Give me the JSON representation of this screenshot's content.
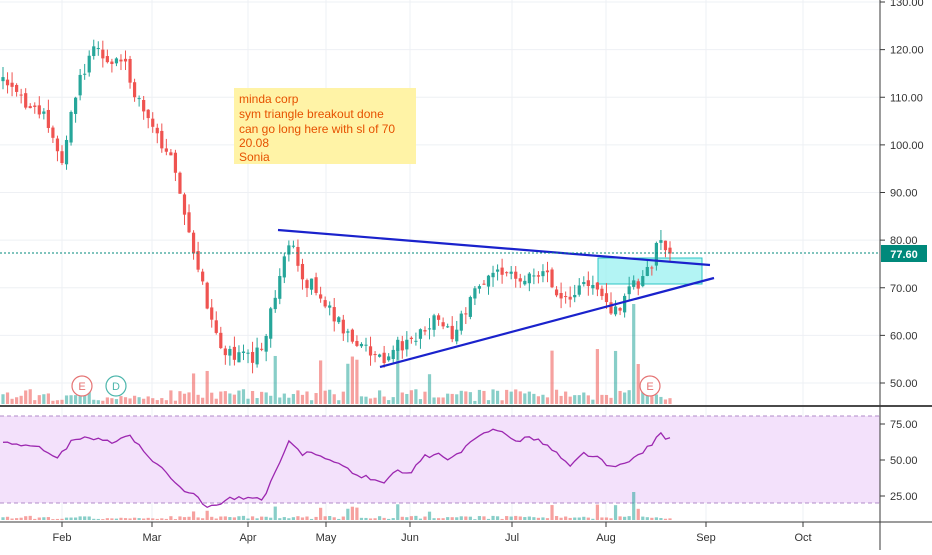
{
  "chart_data": {
    "type": "candlestick",
    "annotation": {
      "lines": [
        "minda corp",
        "sym triangle breakout done",
        "can go long here with sl of 70",
        "20.08",
        "Sonia"
      ],
      "background": "#fff3a6",
      "text_color": "#e65100"
    },
    "last_price_label": "77.60",
    "last_price": 77.6,
    "price_axis": {
      "ticks": [
        "130.00",
        "120.00",
        "110.00",
        "100.00",
        "90.00",
        "80.00",
        "70.00",
        "60.00",
        "50.00"
      ],
      "range": [
        45.5,
        131
      ]
    },
    "rsi_axis": {
      "ticks": [
        "75.00",
        "50.00",
        "25.00"
      ],
      "range": [
        10,
        80
      ],
      "upper_band": 80,
      "lower_band": 20
    },
    "time_axis": [
      "Feb",
      "Mar",
      "Apr",
      "May",
      "Jun",
      "Jul",
      "Aug",
      "Sep",
      "Oct"
    ],
    "event_markers": [
      "E",
      "D",
      "E"
    ],
    "trendlines": {
      "upper": [
        [
          0,
          82
        ],
        [
          1,
          75
        ]
      ],
      "lower": [
        [
          0,
          53.5
        ],
        [
          1,
          72.5
        ]
      ]
    },
    "colors": {
      "up": "#26a69a",
      "down": "#ef5350",
      "trendline": "#1a22cc",
      "rsi_line": "#9c27b0",
      "rsi_band_fill": "#f3e1fb",
      "price_line": "#00897b",
      "price_label_bg": "#00897b",
      "breakout_box": "#99f0f0"
    },
    "price_anchors": [
      [
        0,
        113
      ],
      [
        0.06,
        106
      ],
      [
        0.09,
        96
      ],
      [
        0.11,
        112
      ],
      [
        0.14,
        121
      ],
      [
        0.16,
        116
      ],
      [
        0.18,
        118
      ],
      [
        0.2,
        110
      ],
      [
        0.22,
        104
      ],
      [
        0.25,
        97
      ],
      [
        0.27,
        88
      ],
      [
        0.29,
        76
      ],
      [
        0.31,
        64
      ],
      [
        0.33,
        57
      ],
      [
        0.35,
        56
      ],
      [
        0.37,
        55
      ],
      [
        0.39,
        57
      ],
      [
        0.41,
        70
      ],
      [
        0.43,
        80
      ],
      [
        0.45,
        72
      ],
      [
        0.47,
        70
      ],
      [
        0.49,
        66
      ],
      [
        0.51,
        61
      ],
      [
        0.53,
        58
      ],
      [
        0.55,
        56
      ],
      [
        0.57,
        55
      ],
      [
        0.59,
        58
      ],
      [
        0.61,
        58
      ],
      [
        0.63,
        62
      ],
      [
        0.65,
        63
      ],
      [
        0.67,
        60
      ],
      [
        0.69,
        64
      ],
      [
        0.71,
        70
      ],
      [
        0.73,
        73
      ],
      [
        0.75,
        74
      ],
      [
        0.77,
        71
      ],
      [
        0.79,
        74
      ],
      [
        0.81,
        73
      ],
      [
        0.83,
        70
      ],
      [
        0.85,
        68
      ],
      [
        0.87,
        71
      ],
      [
        0.89,
        69
      ],
      [
        0.91,
        66
      ],
      [
        0.93,
        67
      ],
      [
        0.95,
        71
      ],
      [
        0.97,
        74
      ],
      [
        0.985,
        80
      ],
      [
        1,
        77.6
      ]
    ],
    "rsi_anchors": [
      [
        0,
        63
      ],
      [
        0.05,
        60
      ],
      [
        0.08,
        50
      ],
      [
        0.1,
        62
      ],
      [
        0.13,
        66
      ],
      [
        0.16,
        62
      ],
      [
        0.19,
        68
      ],
      [
        0.21,
        56
      ],
      [
        0.24,
        44
      ],
      [
        0.27,
        30
      ],
      [
        0.29,
        24
      ],
      [
        0.31,
        17
      ],
      [
        0.34,
        24
      ],
      [
        0.37,
        23
      ],
      [
        0.39,
        22
      ],
      [
        0.41,
        43
      ],
      [
        0.43,
        64
      ],
      [
        0.45,
        54
      ],
      [
        0.47,
        55
      ],
      [
        0.49,
        51
      ],
      [
        0.51,
        45
      ],
      [
        0.53,
        40
      ],
      [
        0.55,
        37
      ],
      [
        0.57,
        35
      ],
      [
        0.59,
        42
      ],
      [
        0.61,
        40
      ],
      [
        0.63,
        52
      ],
      [
        0.65,
        54
      ],
      [
        0.67,
        50
      ],
      [
        0.69,
        57
      ],
      [
        0.71,
        65
      ],
      [
        0.73,
        71
      ],
      [
        0.75,
        71
      ],
      [
        0.77,
        62
      ],
      [
        0.79,
        66
      ],
      [
        0.81,
        62
      ],
      [
        0.83,
        55
      ],
      [
        0.85,
        45
      ],
      [
        0.87,
        55
      ],
      [
        0.89,
        52
      ],
      [
        0.91,
        45
      ],
      [
        0.93,
        46
      ],
      [
        0.95,
        53
      ],
      [
        0.97,
        60
      ],
      [
        0.985,
        68
      ],
      [
        1,
        64
      ]
    ]
  }
}
